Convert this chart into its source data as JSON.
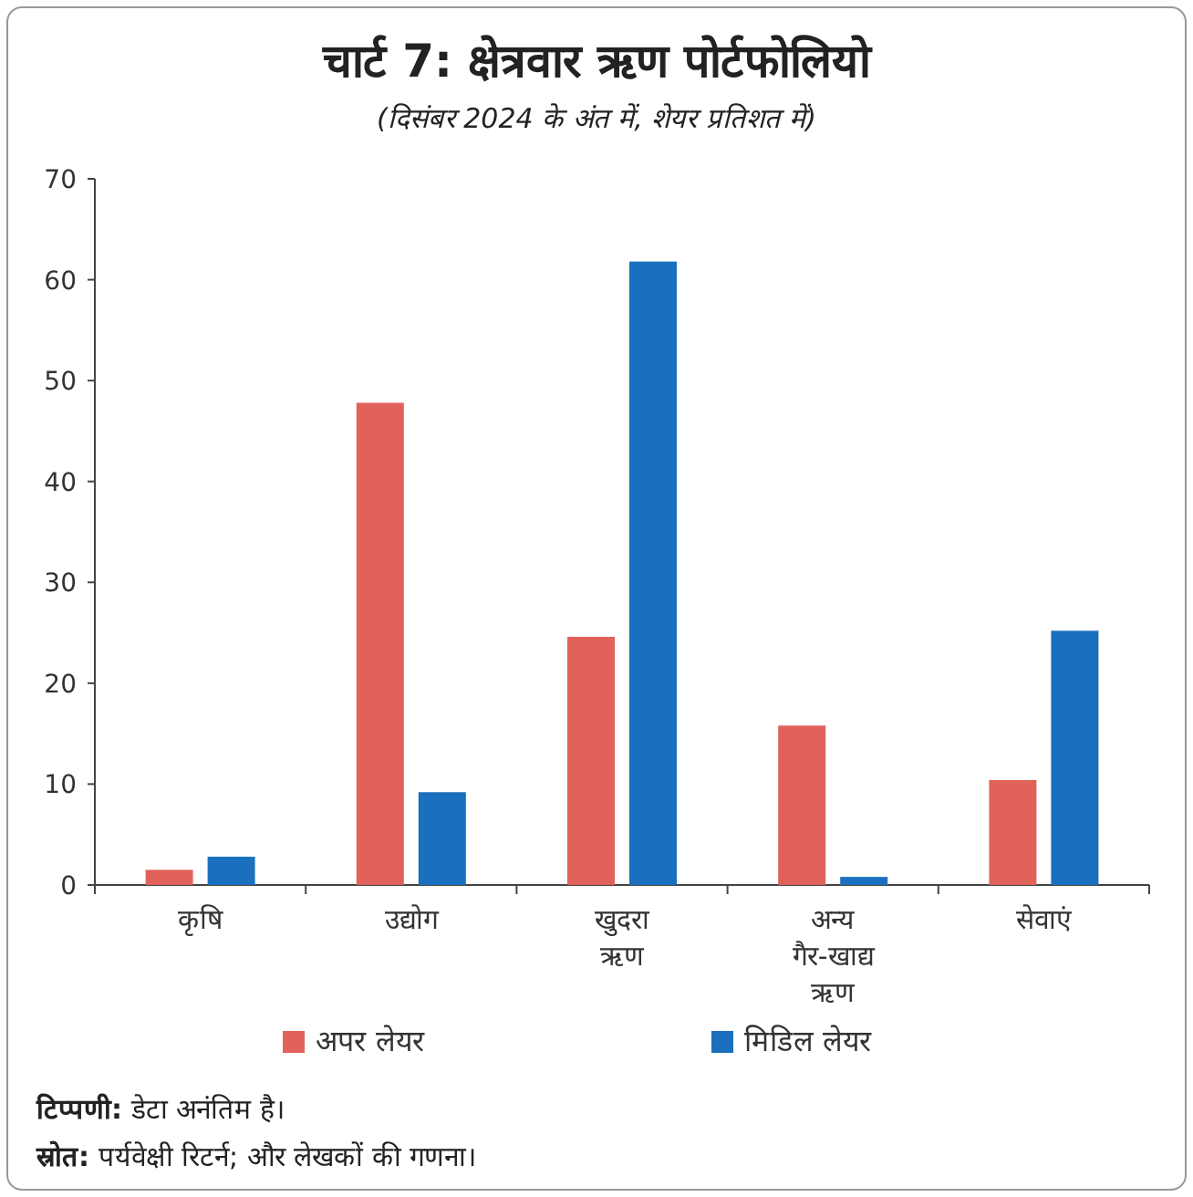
{
  "chart_data": {
    "type": "bar",
    "title": "चार्ट 7: क्षेत्रवार ऋण पोर्टफोलियो",
    "subtitle": "(दिसंबर 2024 के अंत में, शेयर प्रतिशत में)",
    "categories": [
      "कृषि",
      "उद्योग",
      "खुदरा ऋण",
      "अन्य गैर-खाद्य ऋण",
      "सेवाएं"
    ],
    "series": [
      {
        "name": "अपर लेयर",
        "color": "#e0625a",
        "values": [
          1.5,
          47.8,
          24.6,
          15.8,
          10.4
        ]
      },
      {
        "name": "मिडिल लेयर",
        "color": "#1a70be",
        "values": [
          2.8,
          9.2,
          61.8,
          0.8,
          25.2
        ]
      }
    ],
    "ylim": [
      0,
      70
    ],
    "yticks": [
      0,
      10,
      20,
      30,
      40,
      50,
      60,
      70
    ],
    "legend": "bottom",
    "annotations": [
      "**टिप्पणी:** डेटा अनंतिम है।",
      "**स्रोत:** पर्यवेक्षी रिटर्न; और लेखकों की गणना।"
    ]
  }
}
